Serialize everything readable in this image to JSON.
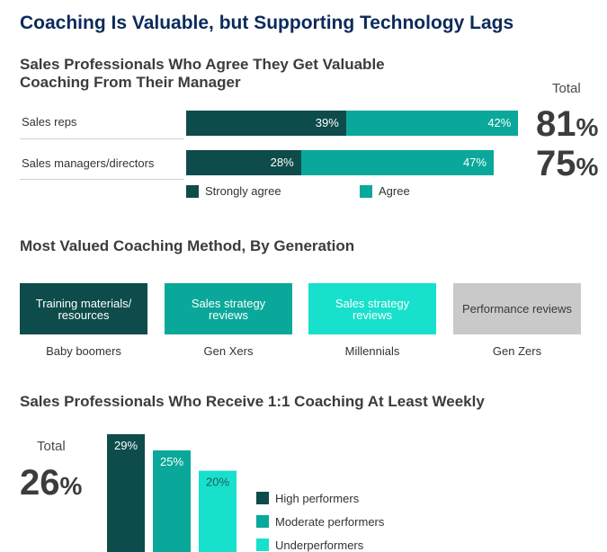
{
  "title": "Coaching Is Valuable, but Supporting Technology Lags",
  "section1": {
    "title": "Sales Professionals Who Agree They Get Valuable Coaching From Their Manager",
    "total_label": "Total",
    "rows": [
      {
        "label": "Sales reps",
        "strongly": 39,
        "agree": 42,
        "strongly_label": "39%",
        "agree_label": "42%",
        "total": "81",
        "pct": "%"
      },
      {
        "label": "Sales managers/directors",
        "strongly": 28,
        "agree": 47,
        "strongly_label": "28%",
        "agree_label": "47%",
        "total": "75",
        "pct": "%"
      }
    ],
    "legend": {
      "strongly": "Strongly agree",
      "agree": "Agree"
    }
  },
  "section2": {
    "title": "Most Valued Coaching Method, By Generation",
    "methods": [
      {
        "method": "Training materials/ resources",
        "generation": "Baby boomers",
        "color": "#0d4c4a",
        "text_color": "#ffffff"
      },
      {
        "method": "Sales strategy reviews",
        "generation": "Gen Xers",
        "color": "#0aa89a",
        "text_color": "#ffffff"
      },
      {
        "method": "Sales strategy reviews",
        "generation": "Millennials",
        "color": "#17e0cc",
        "text_color": "#ffffff"
      },
      {
        "method": "Performance reviews",
        "generation": "Gen Zers",
        "color": "#c9c9c9",
        "text_color": "#3a3a3a"
      }
    ]
  },
  "section3": {
    "title": "Sales Professionals Who Receive 1:1 Coaching At Least Weekly",
    "total_label": "Total",
    "total_value": "26",
    "total_pct": "%"
  },
  "colors": {
    "strongly": "#0d4c4a",
    "agree": "#0aa89a",
    "under": "#17e0cc"
  },
  "chart_data": [
    {
      "type": "bar",
      "orientation": "horizontal",
      "stacked": true,
      "title": "Sales Professionals Who Agree They Get Valuable Coaching From Their Manager",
      "categories": [
        "Sales reps",
        "Sales managers/directors"
      ],
      "series": [
        {
          "name": "Strongly agree",
          "values": [
            39,
            28
          ]
        },
        {
          "name": "Agree",
          "values": [
            42,
            47
          ]
        }
      ],
      "totals": [
        81,
        75
      ],
      "xlim": [
        0,
        100
      ]
    },
    {
      "type": "bar",
      "title": "Sales Professionals Who Receive 1:1 Coaching At Least Weekly",
      "categories": [
        "High performers",
        "Moderate performers",
        "Underperformers"
      ],
      "values": [
        29,
        25,
        20
      ],
      "labels": [
        "29%",
        "25%",
        "20%"
      ],
      "total": 26
    }
  ]
}
